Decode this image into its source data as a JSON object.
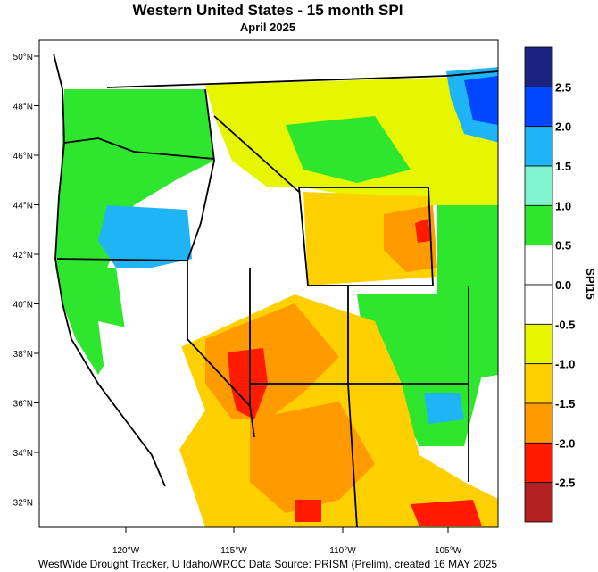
{
  "title": "Western United States - 15 month SPI",
  "subtitle": "April 2025",
  "footer": "WestWide Drought Tracker, U Idaho/WRCC Data Source: PRISM (Prelim), created 16 MAY 2025",
  "colorbar": {
    "label": "SPI15",
    "classes": [
      {
        "color": "#1a237e"
      },
      {
        "color": "#0047ff"
      },
      {
        "color": "#1fb4f5"
      },
      {
        "color": "#7ff5cf"
      },
      {
        "color": "#2ee62e"
      },
      {
        "color": "#ffffff"
      },
      {
        "color": "#ffffff"
      },
      {
        "color": "#e6f500"
      },
      {
        "color": "#ffd000"
      },
      {
        "color": "#ff9a00"
      },
      {
        "color": "#ff1a00"
      },
      {
        "color": "#b22222"
      }
    ],
    "tick_labels": [
      "2.5",
      "2.0",
      "1.5",
      "1.0",
      "0.5",
      "0.0",
      "-0.5",
      "-1.0",
      "-1.5",
      "-2.0",
      "-2.5"
    ]
  },
  "axes": {
    "lat_labels": [
      "50°N",
      "48°N",
      "46°N",
      "44°N",
      "42°N",
      "40°N",
      "38°N",
      "36°N",
      "34°N",
      "32°N"
    ],
    "lon_labels": [
      "120°W",
      "115°W",
      "110°W",
      "105°W"
    ]
  },
  "regions": [
    {
      "name": "pacific-northwest-west",
      "color": "#2ee62e"
    },
    {
      "name": "northern-rockies",
      "color": "#e6f500"
    },
    {
      "name": "great-basin",
      "color": "#ffffff"
    },
    {
      "name": "southwest-desert",
      "color": "#ffd000"
    },
    {
      "name": "southern-nevada-core",
      "color": "#ff9a00"
    },
    {
      "name": "severe-drought-core",
      "color": "#ff1a00"
    },
    {
      "name": "wyoming-basin",
      "color": "#ffd000"
    },
    {
      "name": "colorado-plateau-wet",
      "color": "#2ee62e"
    },
    {
      "name": "oregon-wet-core",
      "color": "#1fb4f5"
    }
  ]
}
